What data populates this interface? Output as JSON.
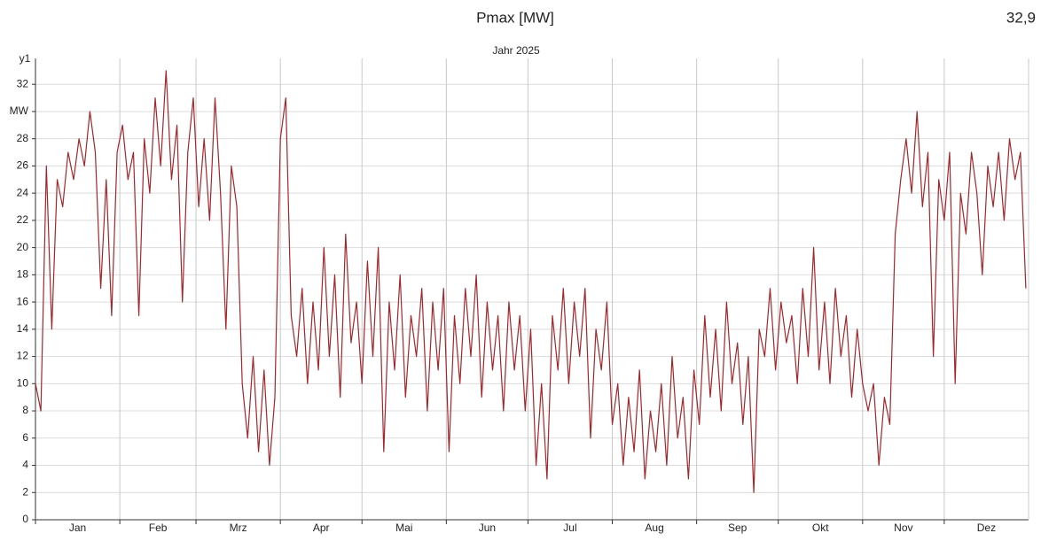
{
  "chart_data": {
    "type": "line",
    "title": "Pmax [MW]",
    "annotation": "32,9",
    "subtitle": "Jahr 2025",
    "y_label": "y1",
    "color": "#a3262a",
    "grid": true,
    "xlim": [
      0,
      365
    ],
    "ylim": [
      0,
      33.9
    ],
    "xticks": [
      {
        "value": 0,
        "label": "Jan"
      },
      {
        "value": 31,
        "label": "Feb"
      },
      {
        "value": 59,
        "label": "Mrz"
      },
      {
        "value": 90,
        "label": "Apr"
      },
      {
        "value": 120,
        "label": "Mai"
      },
      {
        "value": 151,
        "label": "Jun"
      },
      {
        "value": 181,
        "label": "Jul"
      },
      {
        "value": 212,
        "label": "Aug"
      },
      {
        "value": 243,
        "label": "Sep"
      },
      {
        "value": 273,
        "label": "Okt"
      },
      {
        "value": 304,
        "label": "Nov"
      },
      {
        "value": 334,
        "label": "Dez"
      }
    ],
    "yticks": [
      0,
      2,
      4,
      6,
      8,
      10,
      12,
      14,
      16,
      18,
      20,
      22,
      24,
      26,
      28,
      {
        "value": 30,
        "label": "MW"
      },
      32
    ],
    "x": [
      0,
      2,
      4,
      6,
      8,
      10,
      12,
      14,
      16,
      18,
      20,
      22,
      24,
      26,
      28,
      30,
      32,
      34,
      36,
      38,
      40,
      42,
      44,
      46,
      48,
      50,
      52,
      54,
      56,
      58,
      60,
      62,
      64,
      66,
      68,
      70,
      72,
      74,
      76,
      78,
      80,
      82,
      84,
      86,
      88,
      90,
      92,
      94,
      96,
      98,
      100,
      102,
      104,
      106,
      108,
      110,
      112,
      114,
      116,
      118,
      120,
      122,
      124,
      126,
      128,
      130,
      132,
      134,
      136,
      138,
      140,
      142,
      144,
      146,
      148,
      150,
      152,
      154,
      156,
      158,
      160,
      162,
      164,
      166,
      168,
      170,
      172,
      174,
      176,
      178,
      180,
      182,
      184,
      186,
      188,
      190,
      192,
      194,
      196,
      198,
      200,
      202,
      204,
      206,
      208,
      210,
      212,
      214,
      216,
      218,
      220,
      222,
      224,
      226,
      228,
      230,
      232,
      234,
      236,
      238,
      240,
      242,
      244,
      246,
      248,
      250,
      252,
      254,
      256,
      258,
      260,
      262,
      264,
      266,
      268,
      270,
      272,
      274,
      276,
      278,
      280,
      282,
      284,
      286,
      288,
      290,
      292,
      294,
      296,
      298,
      300,
      302,
      304,
      306,
      308,
      310,
      312,
      314,
      316,
      318,
      320,
      322,
      324,
      326,
      328,
      330,
      332,
      334,
      336,
      338,
      340,
      342,
      344,
      346,
      348,
      350,
      352,
      354,
      356,
      358,
      360,
      362,
      364
    ],
    "values": [
      10,
      8,
      26,
      14,
      25,
      23,
      27,
      25,
      28,
      26,
      30,
      27,
      17,
      25,
      15,
      27,
      29,
      25,
      27,
      15,
      28,
      24,
      31,
      26,
      33,
      25,
      29,
      16,
      27,
      31,
      23,
      28,
      22,
      31,
      24,
      14,
      26,
      23,
      10,
      6,
      12,
      5,
      11,
      4,
      9,
      28,
      31,
      15,
      12,
      17,
      10,
      16,
      11,
      20,
      12,
      18,
      9,
      21,
      13,
      16,
      10,
      19,
      12,
      20,
      5,
      16,
      11,
      18,
      9,
      15,
      12,
      17,
      8,
      16,
      11,
      17,
      5,
      15,
      10,
      17,
      12,
      18,
      9,
      16,
      11,
      15,
      8,
      16,
      11,
      15,
      8,
      14,
      4,
      10,
      3,
      15,
      11,
      17,
      10,
      16,
      12,
      17,
      6,
      14,
      11,
      16,
      7,
      10,
      4,
      9,
      5,
      11,
      3,
      8,
      5,
      10,
      4,
      12,
      6,
      9,
      3,
      11,
      7,
      15,
      9,
      14,
      8,
      16,
      10,
      13,
      7,
      12,
      2,
      14,
      12,
      17,
      11,
      16,
      13,
      15,
      10,
      17,
      12,
      20,
      11,
      16,
      10,
      17,
      12,
      15,
      9,
      14,
      10,
      8,
      10,
      4,
      9,
      7,
      21,
      25,
      28,
      24,
      30,
      23,
      27,
      12,
      25,
      22,
      27,
      10,
      24,
      21,
      27,
      24,
      18,
      26,
      23,
      27,
      22,
      28,
      25,
      27,
      17
    ]
  }
}
